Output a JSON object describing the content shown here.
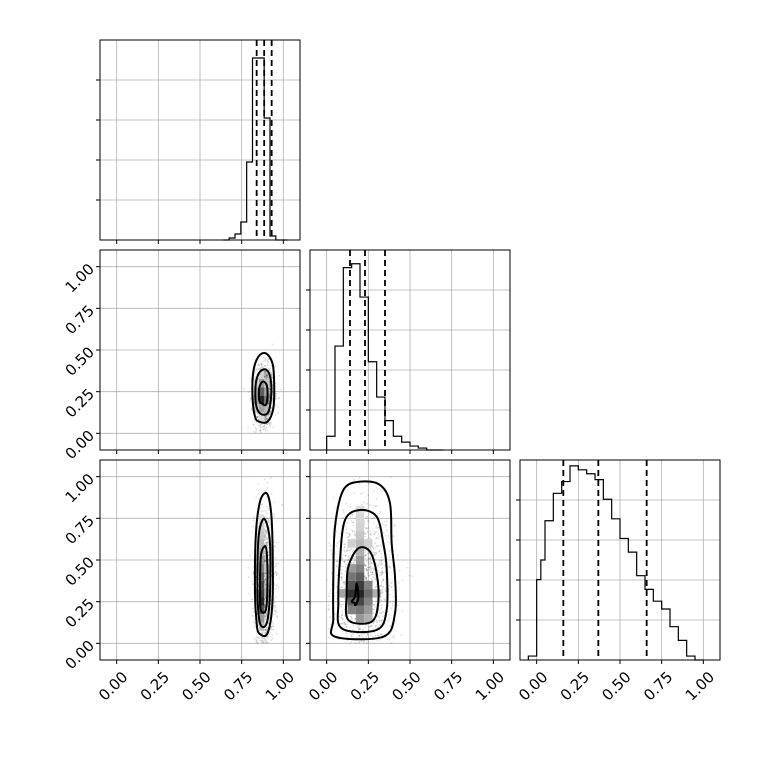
{
  "chart_data": {
    "type": "corner",
    "parameters": [
      "",
      "",
      ""
    ],
    "ranges": [
      [
        -0.1,
        1.1
      ],
      [
        -0.1,
        1.1
      ],
      [
        -0.1,
        1.1
      ]
    ],
    "tick_values": [
      0.0,
      0.25,
      0.5,
      0.75,
      1.0
    ],
    "tick_labels": [
      "0.00",
      "0.25",
      "0.50",
      "0.75",
      "1.00"
    ],
    "grid": true,
    "marginals": [
      {
        "bin_edges": [
          0.64,
          0.675,
          0.71,
          0.745,
          0.78,
          0.815,
          0.85,
          0.885,
          0.92,
          0.955,
          0.99,
          1.025
        ],
        "counts": [
          0.0,
          0.01,
          0.03,
          0.09,
          0.39,
          0.91,
          0.91,
          0.61,
          0.02,
          0.0,
          0.0
        ],
        "ymax": 1.0,
        "quantiles": [
          0.84,
          0.885,
          0.93
        ]
      },
      {
        "bin_edges": [
          0.0,
          0.05,
          0.1,
          0.15,
          0.2,
          0.25,
          0.3,
          0.35,
          0.4,
          0.45,
          0.5,
          0.55,
          0.6,
          0.65,
          0.7
        ],
        "counts": [
          0.07,
          0.53,
          0.93,
          0.95,
          0.78,
          0.45,
          0.27,
          0.15,
          0.07,
          0.04,
          0.02,
          0.01,
          0.0,
          0.0
        ],
        "ymax": 1.02,
        "quantiles": [
          0.14,
          0.23,
          0.35
        ]
      },
      {
        "bin_edges": [
          -0.05,
          0.0,
          0.025,
          0.05,
          0.1,
          0.15,
          0.2,
          0.25,
          0.3,
          0.35,
          0.4,
          0.45,
          0.5,
          0.55,
          0.6,
          0.65,
          0.7,
          0.75,
          0.8,
          0.85,
          0.9,
          0.95,
          1.0
        ],
        "counts": [
          0.02,
          0.41,
          0.51,
          0.71,
          0.85,
          0.91,
          0.99,
          0.97,
          0.95,
          0.92,
          0.82,
          0.72,
          0.62,
          0.55,
          0.43,
          0.36,
          0.3,
          0.26,
          0.17,
          0.1,
          0.02,
          0.0
        ],
        "ymax": 1.02,
        "quantiles": [
          0.16,
          0.37,
          0.66
        ]
      }
    ],
    "joint": [
      {
        "row": 1,
        "col": 0,
        "center": [
          0.885,
          0.225
        ],
        "spread": [
          0.03,
          0.09
        ],
        "cells": [
          {
            "x": 0.87,
            "y": 0.2,
            "v": 0.95
          },
          {
            "x": 0.87,
            "y": 0.25,
            "v": 0.7
          },
          {
            "x": 0.9,
            "y": 0.2,
            "v": 0.6
          },
          {
            "x": 0.87,
            "y": 0.3,
            "v": 0.45
          },
          {
            "x": 0.84,
            "y": 0.2,
            "v": 0.4
          },
          {
            "x": 0.84,
            "y": 0.25,
            "v": 0.35
          },
          {
            "x": 0.9,
            "y": 0.25,
            "v": 0.4
          },
          {
            "x": 0.87,
            "y": 0.15,
            "v": 0.4
          },
          {
            "x": 0.9,
            "y": 0.15,
            "v": 0.3
          },
          {
            "x": 0.84,
            "y": 0.15,
            "v": 0.25
          },
          {
            "x": 0.84,
            "y": 0.3,
            "v": 0.2
          },
          {
            "x": 0.9,
            "y": 0.3,
            "v": 0.25
          },
          {
            "x": 0.87,
            "y": 0.35,
            "v": 0.2
          },
          {
            "x": 0.87,
            "y": 0.1,
            "v": 0.15
          }
        ],
        "contours": [
          [
            [
              0.87,
              0.18
            ],
            [
              0.895,
              0.17
            ],
            [
              0.905,
              0.22
            ],
            [
              0.9,
              0.29
            ],
            [
              0.875,
              0.31
            ],
            [
              0.855,
              0.27
            ],
            [
              0.855,
              0.2
            ]
          ],
          [
            [
              0.86,
              0.12
            ],
            [
              0.905,
              0.12
            ],
            [
              0.925,
              0.2
            ],
            [
              0.925,
              0.32
            ],
            [
              0.9,
              0.38
            ],
            [
              0.86,
              0.37
            ],
            [
              0.835,
              0.3
            ],
            [
              0.835,
              0.18
            ]
          ],
          [
            [
              0.855,
              0.07
            ],
            [
              0.905,
              0.07
            ],
            [
              0.94,
              0.15
            ],
            [
              0.945,
              0.3
            ],
            [
              0.935,
              0.42
            ],
            [
              0.895,
              0.48
            ],
            [
              0.85,
              0.46
            ],
            [
              0.82,
              0.37
            ],
            [
              0.815,
              0.22
            ],
            [
              0.83,
              0.1
            ]
          ]
        ]
      },
      {
        "row": 2,
        "col": 0,
        "center": [
          0.885,
          0.35
        ],
        "spread": [
          0.03,
          0.22
        ],
        "cells": [
          {
            "x": 0.87,
            "y": 0.25,
            "v": 0.95
          },
          {
            "x": 0.87,
            "y": 0.3,
            "v": 0.85
          },
          {
            "x": 0.87,
            "y": 0.35,
            "v": 0.8
          },
          {
            "x": 0.87,
            "y": 0.2,
            "v": 0.75
          },
          {
            "x": 0.87,
            "y": 0.4,
            "v": 0.7
          },
          {
            "x": 0.87,
            "y": 0.45,
            "v": 0.55
          },
          {
            "x": 0.87,
            "y": 0.5,
            "v": 0.45
          },
          {
            "x": 0.87,
            "y": 0.15,
            "v": 0.45
          },
          {
            "x": 0.84,
            "y": 0.3,
            "v": 0.4
          },
          {
            "x": 0.9,
            "y": 0.3,
            "v": 0.4
          },
          {
            "x": 0.87,
            "y": 0.55,
            "v": 0.35
          },
          {
            "x": 0.87,
            "y": 0.6,
            "v": 0.3
          },
          {
            "x": 0.87,
            "y": 0.65,
            "v": 0.25
          },
          {
            "x": 0.87,
            "y": 0.7,
            "v": 0.2
          },
          {
            "x": 0.87,
            "y": 0.75,
            "v": 0.15
          },
          {
            "x": 0.87,
            "y": 0.1,
            "v": 0.3
          },
          {
            "x": 0.84,
            "y": 0.45,
            "v": 0.25
          },
          {
            "x": 0.9,
            "y": 0.45,
            "v": 0.25
          }
        ],
        "contours": [
          [
            [
              0.865,
              0.2
            ],
            [
              0.895,
              0.2
            ],
            [
              0.905,
              0.35
            ],
            [
              0.9,
              0.55
            ],
            [
              0.885,
              0.58
            ],
            [
              0.865,
              0.52
            ],
            [
              0.86,
              0.3
            ]
          ],
          [
            [
              0.86,
              0.12
            ],
            [
              0.9,
              0.12
            ],
            [
              0.92,
              0.3
            ],
            [
              0.92,
              0.6
            ],
            [
              0.9,
              0.72
            ],
            [
              0.875,
              0.74
            ],
            [
              0.85,
              0.62
            ],
            [
              0.845,
              0.3
            ]
          ],
          [
            [
              0.855,
              0.06
            ],
            [
              0.905,
              0.06
            ],
            [
              0.935,
              0.25
            ],
            [
              0.935,
              0.6
            ],
            [
              0.925,
              0.8
            ],
            [
              0.9,
              0.9
            ],
            [
              0.86,
              0.85
            ],
            [
              0.835,
              0.65
            ],
            [
              0.83,
              0.3
            ],
            [
              0.84,
              0.12
            ]
          ]
        ]
      },
      {
        "row": 2,
        "col": 1,
        "center": [
          0.22,
          0.32
        ],
        "spread": [
          0.09,
          0.24
        ],
        "cells": [
          {
            "x": 0.15,
            "y": 0.3,
            "v": 0.9
          },
          {
            "x": 0.2,
            "y": 0.3,
            "v": 0.95
          },
          {
            "x": 0.2,
            "y": 0.25,
            "v": 0.8
          },
          {
            "x": 0.2,
            "y": 0.35,
            "v": 0.85
          },
          {
            "x": 0.15,
            "y": 0.35,
            "v": 0.75
          },
          {
            "x": 0.15,
            "y": 0.25,
            "v": 0.7
          },
          {
            "x": 0.25,
            "y": 0.3,
            "v": 0.65
          },
          {
            "x": 0.25,
            "y": 0.25,
            "v": 0.55
          },
          {
            "x": 0.2,
            "y": 0.4,
            "v": 0.7
          },
          {
            "x": 0.15,
            "y": 0.4,
            "v": 0.6
          },
          {
            "x": 0.2,
            "y": 0.45,
            "v": 0.55
          },
          {
            "x": 0.15,
            "y": 0.45,
            "v": 0.45
          },
          {
            "x": 0.2,
            "y": 0.5,
            "v": 0.45
          },
          {
            "x": 0.25,
            "y": 0.35,
            "v": 0.55
          },
          {
            "x": 0.25,
            "y": 0.2,
            "v": 0.45
          },
          {
            "x": 0.1,
            "y": 0.3,
            "v": 0.4
          },
          {
            "x": 0.2,
            "y": 0.2,
            "v": 0.6
          },
          {
            "x": 0.15,
            "y": 0.2,
            "v": 0.55
          },
          {
            "x": 0.2,
            "y": 0.15,
            "v": 0.45
          },
          {
            "x": 0.25,
            "y": 0.15,
            "v": 0.35
          },
          {
            "x": 0.3,
            "y": 0.3,
            "v": 0.35
          },
          {
            "x": 0.2,
            "y": 0.55,
            "v": 0.35
          },
          {
            "x": 0.2,
            "y": 0.6,
            "v": 0.3
          },
          {
            "x": 0.2,
            "y": 0.65,
            "v": 0.25
          },
          {
            "x": 0.2,
            "y": 0.7,
            "v": 0.2
          },
          {
            "x": 0.2,
            "y": 0.75,
            "v": 0.18
          },
          {
            "x": 0.2,
            "y": 0.8,
            "v": 0.15
          },
          {
            "x": 0.15,
            "y": 0.6,
            "v": 0.2
          },
          {
            "x": 0.25,
            "y": 0.6,
            "v": 0.2
          }
        ],
        "contours": [
          [
            [
              0.17,
              0.23
            ],
            [
              0.19,
              0.27
            ],
            [
              0.18,
              0.36
            ],
            [
              0.17,
              0.28
            ],
            [
              0.15,
              0.25
            ],
            [
              0.18,
              0.24
            ]
          ],
          [
            [
              0.13,
              0.14
            ],
            [
              0.27,
              0.13
            ],
            [
              0.31,
              0.25
            ],
            [
              0.3,
              0.42
            ],
            [
              0.26,
              0.55
            ],
            [
              0.19,
              0.57
            ],
            [
              0.13,
              0.46
            ],
            [
              0.12,
              0.3
            ]
          ],
          [
            [
              0.09,
              0.09
            ],
            [
              0.3,
              0.08
            ],
            [
              0.36,
              0.2
            ],
            [
              0.36,
              0.45
            ],
            [
              0.34,
              0.6
            ],
            [
              0.3,
              0.76
            ],
            [
              0.2,
              0.8
            ],
            [
              0.11,
              0.74
            ],
            [
              0.08,
              0.5
            ],
            [
              0.07,
              0.25
            ]
          ],
          [
            [
              0.05,
              0.04
            ],
            [
              0.34,
              0.04
            ],
            [
              0.41,
              0.18
            ],
            [
              0.41,
              0.4
            ],
            [
              0.39,
              0.6
            ],
            [
              0.38,
              0.84
            ],
            [
              0.32,
              0.95
            ],
            [
              0.2,
              0.97
            ],
            [
              0.1,
              0.92
            ],
            [
              0.05,
              0.7
            ],
            [
              0.04,
              0.4
            ],
            [
              0.04,
              0.15
            ]
          ]
        ]
      }
    ]
  }
}
